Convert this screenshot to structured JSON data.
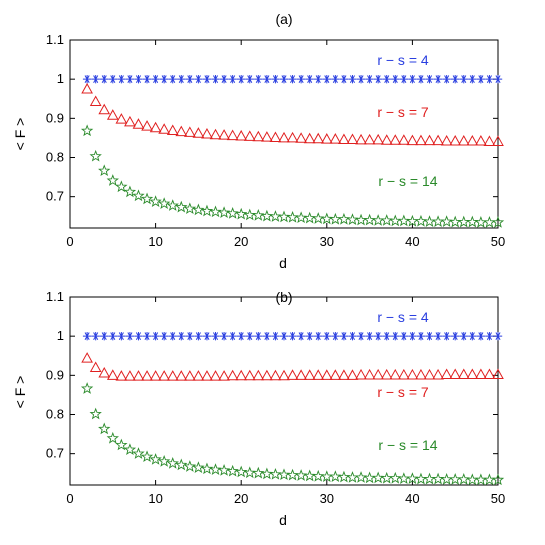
{
  "chart_data": [
    {
      "type": "scatter",
      "title": "(a)",
      "xlabel": "d",
      "ylabel": "< F >",
      "xlim": [
        0,
        50
      ],
      "ylim": [
        0.62,
        1.1
      ],
      "xticks": [
        "0",
        "10",
        "20",
        "30",
        "40",
        "50"
      ],
      "yticks": [
        "0.7",
        "0.8",
        "0.9",
        "1",
        "1.1"
      ],
      "grid": false,
      "x": [
        2,
        3,
        4,
        5,
        6,
        7,
        8,
        9,
        10,
        11,
        12,
        13,
        14,
        15,
        16,
        17,
        18,
        19,
        20,
        21,
        22,
        23,
        24,
        25,
        26,
        27,
        28,
        29,
        30,
        31,
        32,
        33,
        34,
        35,
        36,
        37,
        38,
        39,
        40,
        41,
        42,
        43,
        44,
        45,
        46,
        47,
        48,
        49,
        50
      ],
      "series": [
        {
          "label": "r − s = 4",
          "color": "#2a3fe0",
          "marker": "asterisk",
          "values": [
            1.0,
            1.0,
            1.0,
            1.0,
            1.0,
            1.0,
            1.0,
            1.0,
            1.0,
            1.0,
            1.0,
            1.0,
            1.0,
            1.0,
            1.0,
            1.0,
            1.0,
            1.0,
            1.0,
            1.0,
            1.0,
            1.0,
            1.0,
            1.0,
            1.0,
            1.0,
            1.0,
            1.0,
            1.0,
            1.0,
            1.0,
            1.0,
            1.0,
            1.0,
            1.0,
            1.0,
            1.0,
            1.0,
            1.0,
            1.0,
            1.0,
            1.0,
            1.0,
            1.0,
            1.0,
            1.0,
            1.0,
            1.0,
            1.0
          ]
        },
        {
          "label": "r − s = 7",
          "color": "#e02020",
          "marker": "triangle",
          "values": [
            0.975,
            0.943,
            0.922,
            0.908,
            0.898,
            0.891,
            0.885,
            0.88,
            0.876,
            0.872,
            0.869,
            0.866,
            0.864,
            0.862,
            0.86,
            0.858,
            0.857,
            0.856,
            0.855,
            0.854,
            0.853,
            0.852,
            0.851,
            0.85,
            0.85,
            0.849,
            0.848,
            0.848,
            0.847,
            0.847,
            0.846,
            0.846,
            0.845,
            0.845,
            0.845,
            0.844,
            0.844,
            0.844,
            0.843,
            0.843,
            0.843,
            0.843,
            0.842,
            0.842,
            0.842,
            0.842,
            0.842,
            0.841,
            0.841
          ]
        },
        {
          "label": "r − s = 14",
          "color": "#2a8a2a",
          "marker": "star",
          "values": [
            0.868,
            0.803,
            0.766,
            0.741,
            0.725,
            0.712,
            0.702,
            0.694,
            0.687,
            0.682,
            0.677,
            0.673,
            0.669,
            0.666,
            0.663,
            0.661,
            0.659,
            0.657,
            0.655,
            0.653,
            0.652,
            0.65,
            0.649,
            0.648,
            0.647,
            0.646,
            0.645,
            0.644,
            0.643,
            0.642,
            0.642,
            0.641,
            0.64,
            0.64,
            0.639,
            0.639,
            0.638,
            0.638,
            0.637,
            0.637,
            0.636,
            0.636,
            0.636,
            0.635,
            0.635,
            0.635,
            0.634,
            0.634,
            0.634
          ]
        }
      ]
    },
    {
      "type": "scatter",
      "title": "(b)",
      "xlabel": "d",
      "ylabel": "< F >",
      "xlim": [
        0,
        50
      ],
      "ylim": [
        0.62,
        1.1
      ],
      "xticks": [
        "0",
        "10",
        "20",
        "30",
        "40",
        "50"
      ],
      "yticks": [
        "0.7",
        "0.8",
        "0.9",
        "1",
        "1.1"
      ],
      "grid": false,
      "x": [
        2,
        3,
        4,
        5,
        6,
        7,
        8,
        9,
        10,
        11,
        12,
        13,
        14,
        15,
        16,
        17,
        18,
        19,
        20,
        21,
        22,
        23,
        24,
        25,
        26,
        27,
        28,
        29,
        30,
        31,
        32,
        33,
        34,
        35,
        36,
        37,
        38,
        39,
        40,
        41,
        42,
        43,
        44,
        45,
        46,
        47,
        48,
        49,
        50
      ],
      "series": [
        {
          "label": "r − s = 4",
          "color": "#2a3fe0",
          "marker": "asterisk",
          "values": [
            1.0,
            1.0,
            1.0,
            1.0,
            1.0,
            1.0,
            1.0,
            1.0,
            1.0,
            1.0,
            1.0,
            1.0,
            1.0,
            1.0,
            1.0,
            1.0,
            1.0,
            1.0,
            1.0,
            1.0,
            1.0,
            1.0,
            1.0,
            1.0,
            1.0,
            1.0,
            1.0,
            1.0,
            1.0,
            1.0,
            1.0,
            1.0,
            1.0,
            1.0,
            1.0,
            1.0,
            1.0,
            1.0,
            1.0,
            1.0,
            1.0,
            1.0,
            1.0,
            1.0,
            1.0,
            1.0,
            1.0,
            1.0,
            1.0
          ]
        },
        {
          "label": "r − s = 7",
          "color": "#e02020",
          "marker": "triangle",
          "values": [
            0.944,
            0.92,
            0.906,
            0.9,
            0.898,
            0.898,
            0.898,
            0.898,
            0.898,
            0.898,
            0.898,
            0.898,
            0.898,
            0.898,
            0.898,
            0.898,
            0.898,
            0.899,
            0.899,
            0.899,
            0.899,
            0.899,
            0.899,
            0.899,
            0.9,
            0.9,
            0.9,
            0.9,
            0.9,
            0.9,
            0.9,
            0.9,
            0.901,
            0.901,
            0.901,
            0.901,
            0.901,
            0.901,
            0.901,
            0.901,
            0.901,
            0.901,
            0.902,
            0.902,
            0.902,
            0.902,
            0.902,
            0.902,
            0.902
          ]
        },
        {
          "label": "r − s = 14",
          "color": "#2a8a2a",
          "marker": "star",
          "values": [
            0.866,
            0.801,
            0.763,
            0.739,
            0.722,
            0.71,
            0.7,
            0.692,
            0.685,
            0.68,
            0.675,
            0.671,
            0.667,
            0.664,
            0.661,
            0.659,
            0.657,
            0.655,
            0.653,
            0.651,
            0.65,
            0.648,
            0.647,
            0.646,
            0.645,
            0.644,
            0.643,
            0.642,
            0.641,
            0.641,
            0.64,
            0.639,
            0.639,
            0.638,
            0.638,
            0.637,
            0.637,
            0.636,
            0.636,
            0.635,
            0.635,
            0.635,
            0.634,
            0.634,
            0.634,
            0.633,
            0.633,
            0.633,
            0.633
          ]
        }
      ]
    }
  ]
}
